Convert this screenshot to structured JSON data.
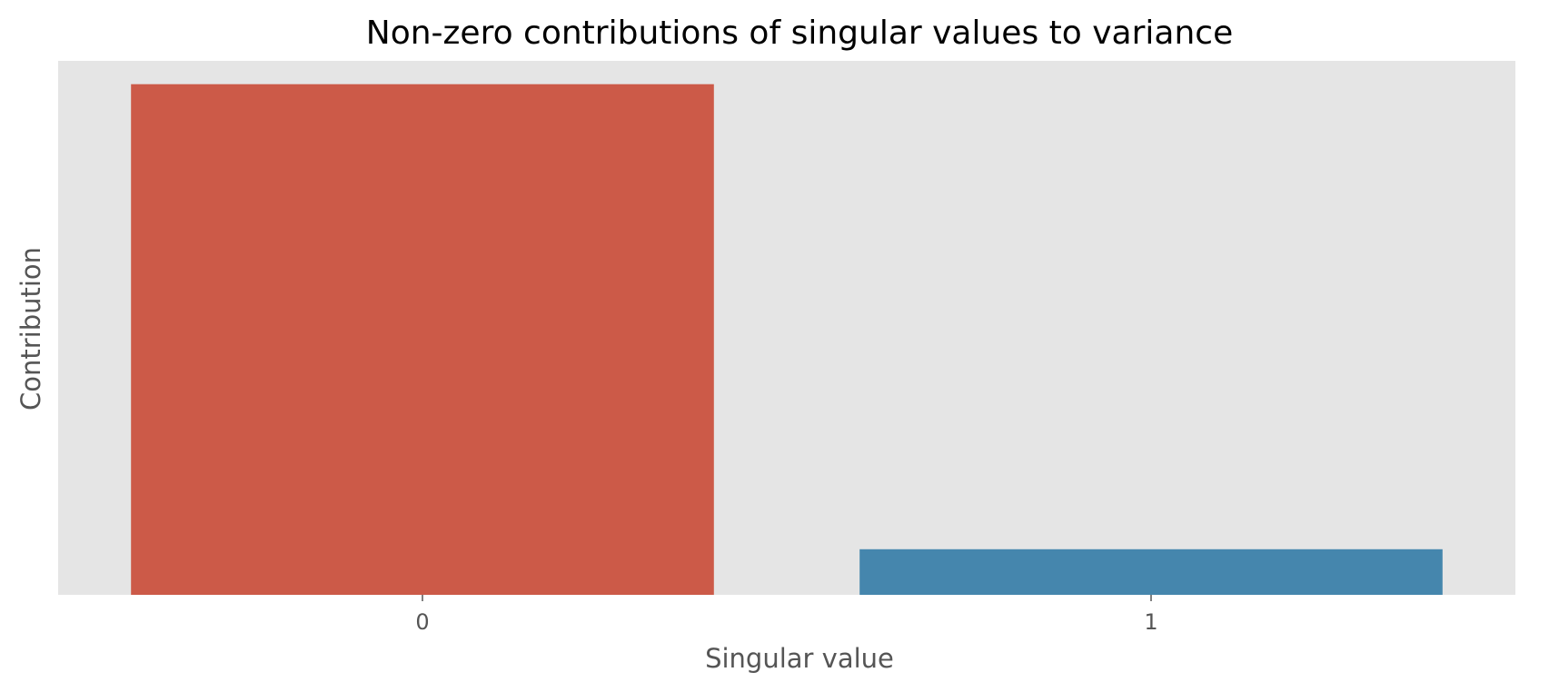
{
  "chart_data": {
    "type": "bar",
    "title": "Non-zero contributions of singular values to variance",
    "xlabel": "Singular value",
    "ylabel": "Contribution",
    "categories": [
      "0",
      "1"
    ],
    "values": [
      0.918,
      0.082
    ],
    "ylim": [
      0,
      0.96
    ],
    "y_ticks_shown": false,
    "grid": false,
    "legend": "none",
    "colors": [
      "#CC5A48",
      "#4586AD"
    ],
    "plot_background": "#E5E5E5"
  }
}
